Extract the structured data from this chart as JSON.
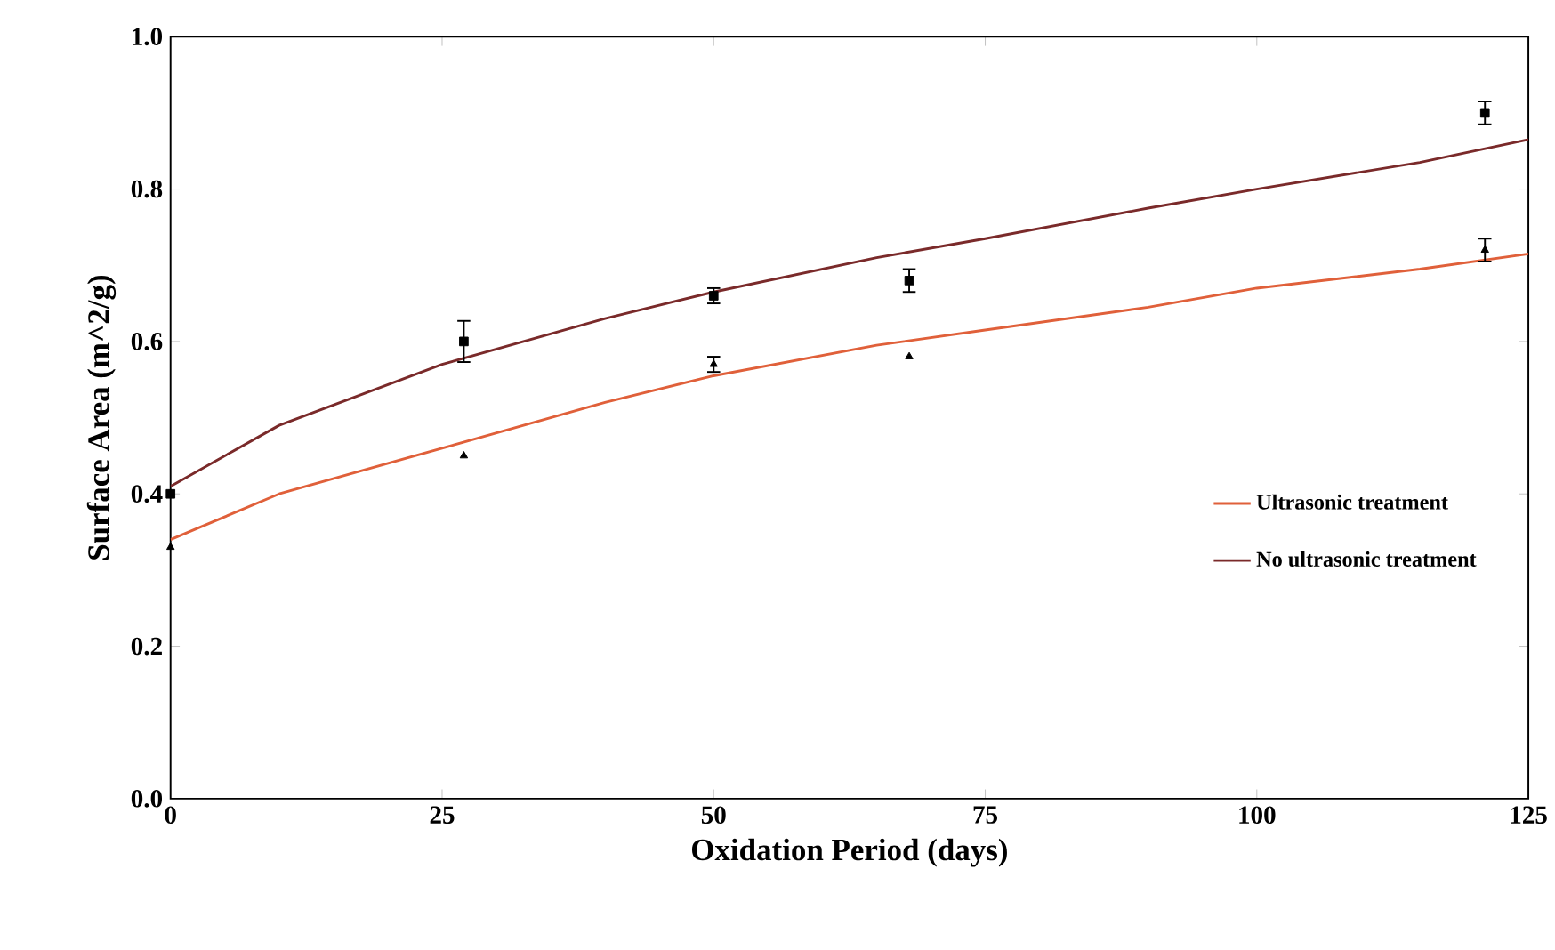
{
  "chart_data": {
    "type": "line",
    "xlabel": "Oxidation Period (days)",
    "ylabel": "Surface Area (m^2/g)",
    "xlim": [
      0,
      125
    ],
    "ylim": [
      0,
      1.0
    ],
    "xticks": [
      0,
      25,
      50,
      75,
      100,
      125
    ],
    "yticks": [
      {
        "value": 0,
        "label": "0.0"
      },
      0.2,
      0.4,
      0.6,
      0.8,
      {
        "value": 1.0,
        "label": "1.0"
      }
    ],
    "grid": false,
    "legend": "right",
    "series": [
      {
        "name": "Ultrasonic treatment",
        "color": "#e0603a",
        "x": [
          0,
          10,
          25,
          40,
          50,
          65,
          75,
          90,
          100,
          115,
          125
        ],
        "values": [
          0.34,
          0.4,
          0.46,
          0.52,
          0.555,
          0.595,
          0.615,
          0.645,
          0.67,
          0.695,
          0.715
        ]
      },
      {
        "name": "No ultrasonic treatment",
        "color": "#7a2a2a",
        "x": [
          0,
          10,
          25,
          40,
          50,
          65,
          75,
          90,
          100,
          115,
          125
        ],
        "values": [
          0.41,
          0.49,
          0.57,
          0.63,
          0.665,
          0.71,
          0.735,
          0.775,
          0.8,
          0.835,
          0.865
        ]
      },
      {
        "type": "scatter",
        "color": "#000000",
        "marker": "triangle",
        "x": [
          0,
          27,
          50,
          68,
          121
        ],
        "values": [
          0.33,
          0.45,
          0.57,
          0.58,
          0.72
        ],
        "errors": [
          null,
          null,
          0.01,
          null,
          0.015
        ]
      },
      {
        "type": "scatter",
        "color": "#000000",
        "marker": "square",
        "x": [
          0,
          27,
          50,
          68,
          121
        ],
        "values": [
          0.4,
          0.6,
          0.66,
          0.68,
          0.9
        ],
        "errors": [
          null,
          0.027,
          0.01,
          0.015,
          0.015
        ]
      }
    ]
  }
}
